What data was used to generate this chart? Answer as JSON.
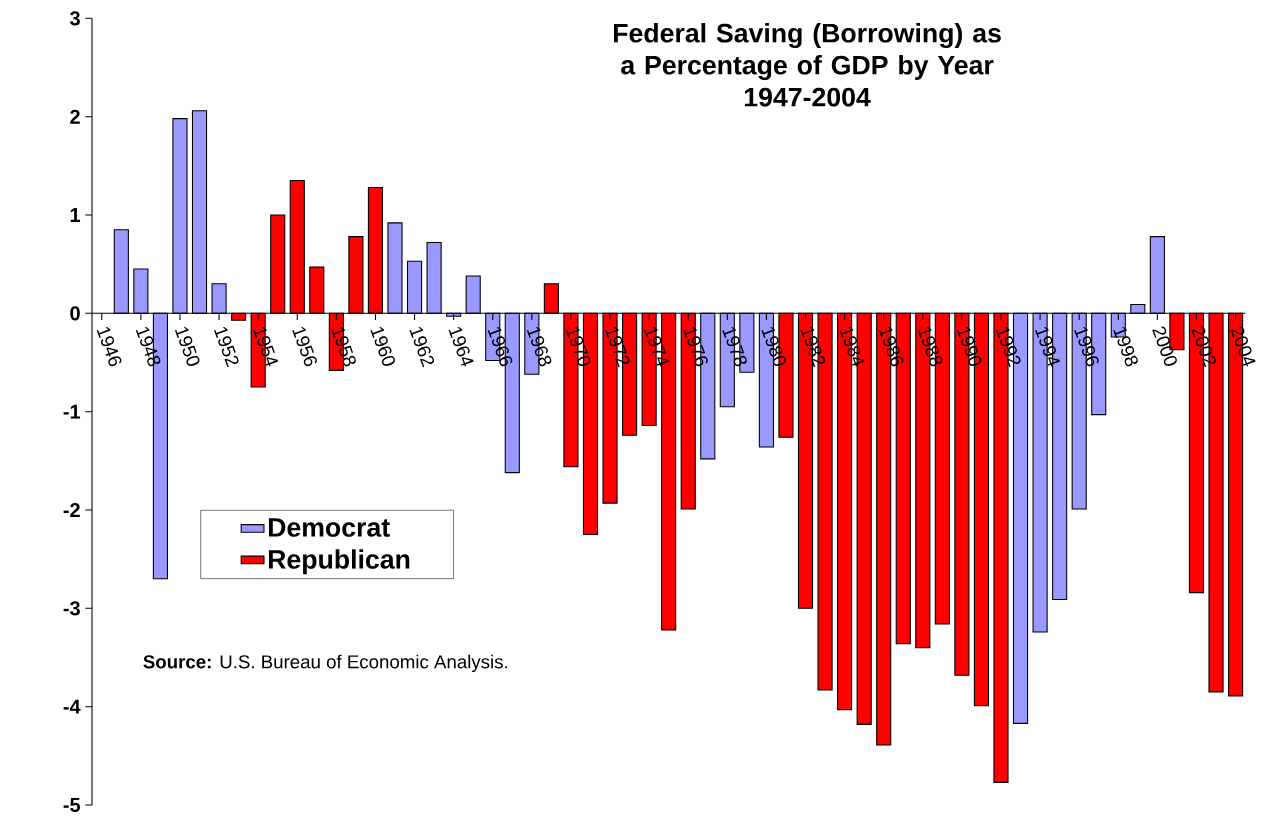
{
  "chart_data": {
    "type": "bar",
    "title": "Federal Saving (Borrowing) as a Percentage of GDP by Year",
    "subtitle": "1947-2004",
    "categories": [
      "1946",
      null,
      "1948",
      null,
      "1950",
      null,
      "1952",
      null,
      "1954",
      null,
      "1956",
      null,
      "1958",
      null,
      "1960",
      null,
      "1962",
      null,
      "1964",
      null,
      "1966",
      null,
      "1968",
      null,
      "1970",
      null,
      "1972",
      null,
      "1974",
      null,
      "1976",
      null,
      "1978",
      null,
      "1980",
      null,
      "1982",
      null,
      "1984",
      null,
      "1986",
      null,
      "1988",
      null,
      "1990",
      null,
      "1992",
      null,
      "1994",
      null,
      "1996",
      null,
      "1998",
      null,
      "2000",
      null,
      "2002",
      null,
      "2004"
    ],
    "series": [
      {
        "name": "Democrat",
        "color": "#9999ff",
        "values": [
          null,
          0.85,
          0.45,
          -2.7,
          1.98,
          2.06,
          0.3,
          null,
          null,
          null,
          null,
          null,
          null,
          null,
          null,
          0.92,
          0.53,
          0.72,
          -0.03,
          0.38,
          -0.48,
          -1.62,
          -0.62,
          null,
          null,
          null,
          null,
          null,
          null,
          null,
          null,
          -1.48,
          -0.95,
          -0.6,
          -1.36,
          null,
          null,
          null,
          null,
          null,
          null,
          null,
          null,
          null,
          null,
          null,
          null,
          -4.17,
          -3.24,
          -2.91,
          -1.99,
          -1.03,
          -0.24,
          0.09,
          0.78,
          null,
          null,
          null,
          null
        ]
      },
      {
        "name": "Republican",
        "color": "#ff0000",
        "values": [
          null,
          null,
          null,
          null,
          null,
          null,
          null,
          -0.07,
          -0.75,
          1.0,
          1.35,
          0.47,
          -0.58,
          0.78,
          1.28,
          null,
          null,
          null,
          null,
          null,
          null,
          null,
          null,
          0.3,
          -1.56,
          -2.25,
          -1.93,
          -1.24,
          -1.14,
          -3.22,
          -1.99,
          null,
          null,
          null,
          null,
          -1.26,
          -3.0,
          -3.83,
          -4.03,
          -4.18,
          -4.39,
          -3.36,
          -3.4,
          -3.16,
          -3.68,
          -3.99,
          -4.77,
          null,
          null,
          null,
          null,
          null,
          null,
          null,
          null,
          -0.37,
          -2.84,
          -3.85,
          -3.89
        ]
      }
    ],
    "ylim": [
      -5,
      3
    ],
    "yticks": [
      -5,
      -4,
      -3,
      -2,
      -1,
      0,
      1,
      2,
      3
    ],
    "legend": "left",
    "annotations": [
      "**Source:**    U.S. Bureau of Economic Analysis."
    ]
  }
}
